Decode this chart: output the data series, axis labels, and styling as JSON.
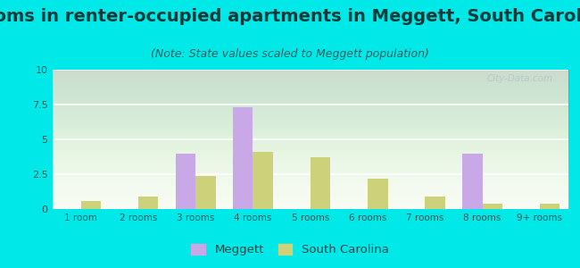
{
  "title": "Rooms in renter-occupied apartments in Meggett, South Carolina",
  "subtitle": "(Note: State values scaled to Meggett population)",
  "categories": [
    "1 room",
    "2 rooms",
    "3 rooms",
    "4 rooms",
    "5 rooms",
    "6 rooms",
    "7 rooms",
    "8 rooms",
    "9+ rooms"
  ],
  "meggett_values": [
    0,
    0,
    4.0,
    7.3,
    0,
    0,
    0,
    4.0,
    0
  ],
  "sc_values": [
    0.6,
    0.9,
    2.4,
    4.1,
    3.7,
    2.2,
    0.9,
    0.4,
    0.4
  ],
  "meggett_color": "#c9a8e8",
  "sc_color": "#cdd17a",
  "background_outer": "#00e8e8",
  "background_plot_top": "#eaf5e0",
  "background_plot_bottom": "#f8fcf4",
  "ylim": [
    0,
    10
  ],
  "yticks": [
    0,
    2.5,
    5,
    7.5,
    10
  ],
  "ytick_labels": [
    "0",
    "2.5",
    "5",
    "7.5",
    "10"
  ],
  "title_fontsize": 14,
  "subtitle_fontsize": 9,
  "legend_meggett": "Meggett",
  "legend_sc": "South Carolina",
  "watermark": "City-Data.com",
  "bar_width": 0.35
}
